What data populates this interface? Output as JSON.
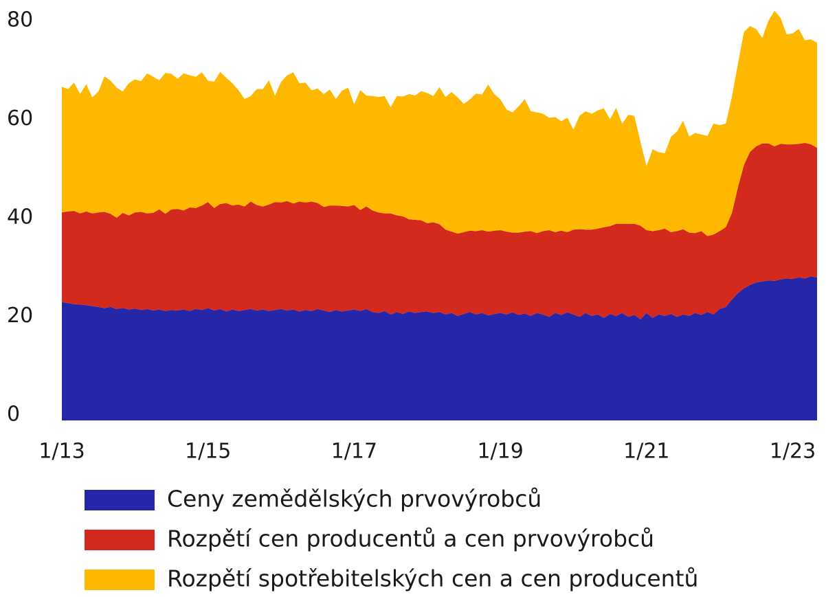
{
  "chart_data": {
    "type": "stacked_area",
    "categories": [
      "1/13",
      null,
      null,
      null,
      null,
      null,
      null,
      null,
      null,
      null,
      null,
      null,
      null,
      null,
      null,
      null,
      null,
      null,
      null,
      null,
      null,
      null,
      null,
      null,
      "1/15",
      null,
      null,
      null,
      null,
      null,
      null,
      null,
      null,
      null,
      null,
      null,
      null,
      null,
      null,
      null,
      null,
      null,
      null,
      null,
      null,
      null,
      null,
      null,
      "1/17",
      null,
      null,
      null,
      null,
      null,
      null,
      null,
      null,
      null,
      null,
      null,
      null,
      null,
      null,
      null,
      null,
      null,
      null,
      null,
      null,
      null,
      null,
      null,
      "1/19",
      null,
      null,
      null,
      null,
      null,
      null,
      null,
      null,
      null,
      null,
      null,
      null,
      null,
      null,
      null,
      null,
      null,
      null,
      null,
      null,
      null,
      null,
      null,
      "1/21",
      null,
      null,
      null,
      null,
      null,
      null,
      null,
      null,
      null,
      null,
      null,
      null,
      null,
      null,
      null,
      null,
      null,
      null,
      null,
      null,
      null,
      null,
      null,
      "1/23",
      null,
      null,
      null,
      null
    ],
    "series": [
      {
        "name": "Ceny zemědělských prvovýrobců",
        "color": "#2626a8",
        "values": [
          24,
          23.8,
          23.6,
          23.5,
          23.4,
          23.2,
          23,
          22.8,
          23,
          22.6,
          22.8,
          22.5,
          22.7,
          22.4,
          22.6,
          22.3,
          22.5,
          22.2,
          22.4,
          22.3,
          22.5,
          22.2,
          22.6,
          22.4,
          22.8,
          22.3,
          22.6,
          22.1,
          22.5,
          22.2,
          22.4,
          22.6,
          22.3,
          22.5,
          22.2,
          22.4,
          22.6,
          22.3,
          22.5,
          22.1,
          22.4,
          22.2,
          22.6,
          22.3,
          22,
          22.4,
          22.1,
          22.3,
          22.5,
          22.2,
          22.6,
          22,
          21.8,
          22.2,
          21.5,
          22,
          21.6,
          22.1,
          21.8,
          22,
          22.1,
          21.8,
          22,
          21.5,
          21.8,
          21.2,
          21.6,
          22,
          21.5,
          21.8,
          21.3,
          21.6,
          21.8,
          21.5,
          21.9,
          21.4,
          21.7,
          21.2,
          21.8,
          21.5,
          21,
          21.8,
          21.4,
          21.9,
          21.5,
          21,
          21.8,
          21.2,
          21.5,
          20.8,
          21.6,
          21.2,
          21.8,
          21,
          21.4,
          20.5,
          21.8,
          20.8,
          21.5,
          21.2,
          21.6,
          21,
          21.5,
          21.2,
          21.8,
          21.4,
          22,
          21.5,
          22.6,
          23,
          24.5,
          25.8,
          26.8,
          27.5,
          28,
          28.2,
          28.4,
          28.3,
          28.6,
          28.8,
          28.7,
          29,
          28.8,
          29.2,
          29
        ]
      },
      {
        "name": "Rozpětí cen producentů a cen prvovýrobců",
        "color": "#d42a1e",
        "values": [
          18.2,
          18.6,
          18.9,
          18.5,
          19,
          18.8,
          19.2,
          19.5,
          18.9,
          18.5,
          19.3,
          19.1,
          19.5,
          19.9,
          19.4,
          19.8,
          20.3,
          19.7,
          20.4,
          20.6,
          20.1,
          21,
          20.5,
          21.2,
          21.5,
          20.8,
          21.3,
          22,
          21.1,
          21.6,
          21,
          21.8,
          21.4,
          20.9,
          21.6,
          21.9,
          21.6,
          22.2,
          21.5,
          22.3,
          21.8,
          22.2,
          21.5,
          21,
          21.6,
          21.2,
          21.4,
          21.1,
          21.2,
          20.5,
          20.8,
          20.6,
          20.4,
          19.8,
          20.5,
          19.6,
          19.8,
          18.7,
          18.9,
          18.6,
          17.9,
          18.4,
          17.8,
          17.2,
          16.5,
          16.7,
          16.6,
          16.5,
          16.9,
          16.8,
          17,
          16.9,
          16.8,
          16.8,
          16.2,
          16.7,
          16.6,
          17.2,
          16.2,
          16.9,
          17.6,
          16.4,
          17.1,
          16.3,
          17.2,
          17.8,
          16.9,
          17.5,
          17.4,
          18.4,
          17.8,
          18.7,
          18.1,
          18.9,
          18.5,
          19,
          16.8,
          17.6,
          17.1,
          17.7,
          16.6,
          17.4,
          17.3,
          16.9,
          16.2,
          17,
          15.4,
          16.2,
          15.8,
          16.2,
          17.5,
          21.5,
          25,
          27,
          27.6,
          28,
          27.8,
          27.3,
          27.5,
          27.2,
          27.3,
          27.1,
          27.5,
          26.8,
          26.3
        ]
      },
      {
        "name": "Rozpětí spotřebitelských cen a cen producentů",
        "color": "#ffb800",
        "values": [
          25.5,
          24.8,
          26,
          24.2,
          25.8,
          23.5,
          24.5,
          27.5,
          27,
          26.4,
          24.6,
          26.8,
          27,
          26.5,
          28.4,
          27.6,
          26.2,
          28.6,
          27.5,
          26.4,
          27.8,
          26.8,
          26.6,
          27,
          24.6,
          25.6,
          26.8,
          25.4,
          24.8,
          23.2,
          21.8,
          21.4,
          23.5,
          23.8,
          25.2,
          21.6,
          24.5,
          25.5,
          26.6,
          24,
          24.3,
          22.6,
          23.2,
          22.9,
          23.5,
          21.6,
          23.4,
          24.1,
          20.4,
          24.3,
          22.5,
          23.2,
          23.4,
          23.8,
          21.5,
          24.2,
          24.3,
          25.4,
          25.2,
          26.2,
          26.4,
          25.6,
          27.8,
          26.9,
          28.3,
          27.6,
          26,
          26.6,
          27.9,
          27.5,
          29.8,
          27.7,
          26.5,
          24.8,
          24.4,
          25.6,
          26.9,
          24.3,
          24.5,
          23.8,
          22.8,
          23.3,
          22.2,
          23.2,
          20.3,
          23,
          24,
          23.5,
          24,
          24.1,
          21.7,
          23.5,
          20.3,
          22.1,
          21.9,
          17,
          13,
          16.6,
          15.8,
          15.3,
          19.3,
          20.2,
          22,
          19.5,
          20.3,
          19.6,
          20.3,
          22.5,
          21.5,
          21,
          23.5,
          25,
          27,
          25.5,
          23.8,
          21.4,
          24.8,
          27.5,
          25.6,
          22.3,
          22.5,
          23.3,
          20.8,
          21.3,
          21.3
        ]
      }
    ],
    "ylim": [
      0,
      85
    ],
    "yticks": [
      0,
      20,
      40,
      60,
      80
    ]
  }
}
